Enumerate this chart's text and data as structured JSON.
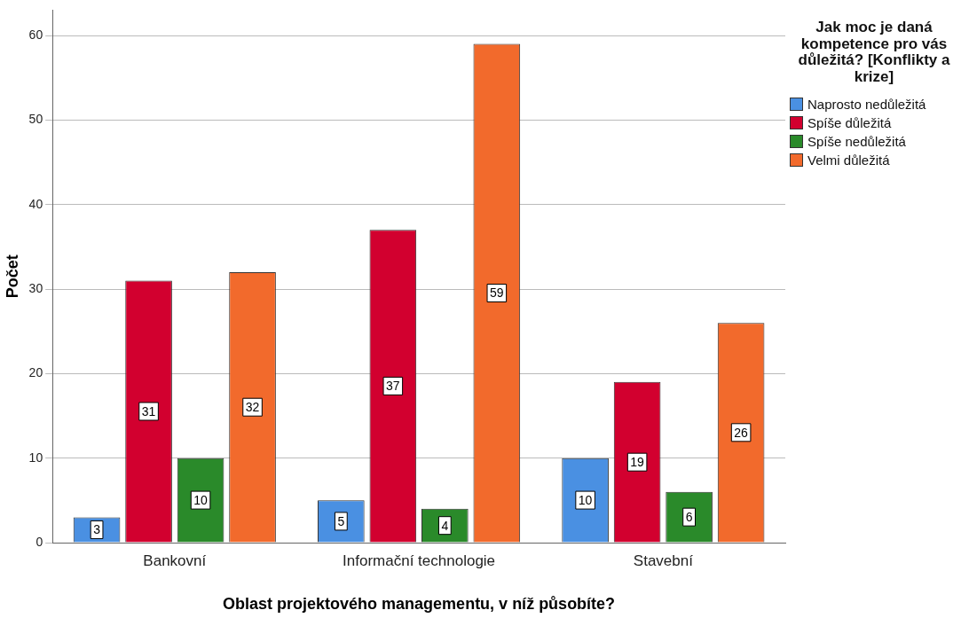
{
  "chart_data": {
    "type": "bar",
    "xlabel": "Oblast projektového managementu, v níž působíte?",
    "ylabel": "Počet",
    "legend_title": "Jak moc je daná kompetence pro vás důležitá? [Konflikty a krize]",
    "categories": [
      "Bankovní",
      "Informační technologie",
      "Stavební"
    ],
    "series": [
      {
        "name": "Naprosto nedůležitá",
        "color": "#4a90e2",
        "values": [
          3,
          5,
          10
        ]
      },
      {
        "name": "Spíše důležitá",
        "color": "#d2002f",
        "values": [
          31,
          37,
          19
        ]
      },
      {
        "name": "Spíše nedůležitá",
        "color": "#2a8a2a",
        "values": [
          10,
          4,
          6
        ]
      },
      {
        "name": "Velmi důležitá",
        "color": "#f26a2c",
        "values": [
          32,
          59,
          26
        ]
      }
    ],
    "ylim": [
      0,
      63
    ],
    "yticks": [
      0,
      10,
      20,
      30,
      40,
      50,
      60
    ],
    "grid": "y",
    "legend": "right",
    "data_labels": true
  }
}
